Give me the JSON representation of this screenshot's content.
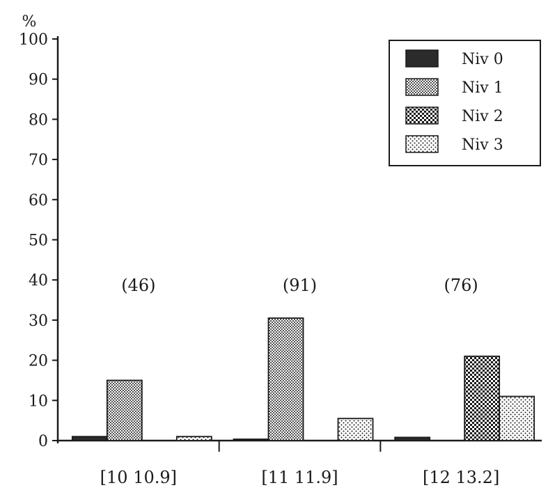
{
  "chart_data": {
    "type": "bar",
    "ylabel": "%",
    "ylim": [
      0,
      100
    ],
    "yticks": [
      0,
      10,
      20,
      30,
      40,
      50,
      60,
      70,
      80,
      90,
      100
    ],
    "categories": [
      "[10 10.9]",
      "[11 11.9]",
      "[12 13.2]"
    ],
    "group_counts": [
      "(46)",
      "(91)",
      "(76)"
    ],
    "legend_position": "top-right",
    "grid": false,
    "series": [
      {
        "name": "Niv 0",
        "values": [
          1,
          0.3,
          0.8
        ],
        "pattern": "solid"
      },
      {
        "name": "Niv 1",
        "values": [
          15,
          30.5,
          0
        ],
        "pattern": "fine-dots"
      },
      {
        "name": "Niv 2",
        "values": [
          0,
          0,
          21
        ],
        "pattern": "checker"
      },
      {
        "name": "Niv 3",
        "values": [
          1,
          5.5,
          11
        ],
        "pattern": "sparse-dots"
      }
    ]
  },
  "colors": {
    "ink": "#1a1a1a",
    "niv0": "#2b2b2b",
    "background": "#ffffff"
  }
}
